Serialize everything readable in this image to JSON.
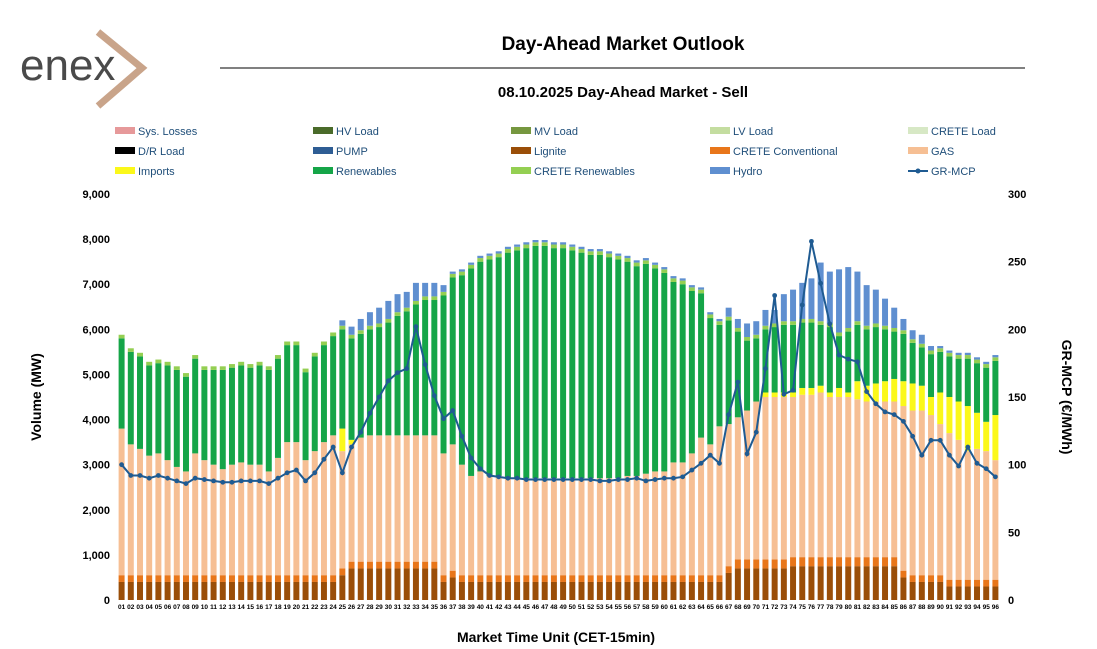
{
  "header": {
    "logo_text": "enex",
    "title": "Day-Ahead Market Outlook",
    "subtitle": "08.10.2025  Day-Ahead Market - Sell"
  },
  "chart_data": {
    "type": "bar",
    "stacked": true,
    "title": "Day-Ahead Market Outlook",
    "subtitle": "08.10.2025  Day-Ahead Market - Sell",
    "xlabel": "Market Time Unit (CET-15min)",
    "ylabel": "Volume (MW)",
    "y2label": "GR-MCP (€/MWh)",
    "ylim": [
      0,
      9000
    ],
    "y2lim": [
      0,
      300
    ],
    "yticks": [
      "0",
      "1,000",
      "2,000",
      "3,000",
      "4,000",
      "5,000",
      "6,000",
      "7,000",
      "8,000",
      "9,000"
    ],
    "y2ticks": [
      "0",
      "50",
      "100",
      "150",
      "200",
      "250",
      "300"
    ],
    "grid": false,
    "legend_position": "top",
    "categories": [
      "01",
      "02",
      "03",
      "04",
      "05",
      "06",
      "07",
      "08",
      "09",
      "10",
      "11",
      "12",
      "13",
      "14",
      "15",
      "16",
      "17",
      "18",
      "19",
      "20",
      "21",
      "22",
      "23",
      "24",
      "25",
      "26",
      "27",
      "28",
      "29",
      "30",
      "31",
      "32",
      "33",
      "34",
      "35",
      "36",
      "37",
      "38",
      "39",
      "40",
      "41",
      "42",
      "43",
      "44",
      "45",
      "46",
      "47",
      "48",
      "49",
      "50",
      "51",
      "52",
      "53",
      "54",
      "55",
      "56",
      "57",
      "58",
      "59",
      "60",
      "61",
      "62",
      "63",
      "64",
      "65",
      "66",
      "67",
      "68",
      "69",
      "70",
      "71",
      "72",
      "73",
      "74",
      "75",
      "76",
      "77",
      "78",
      "79",
      "80",
      "81",
      "82",
      "83",
      "84",
      "85",
      "86",
      "87",
      "88",
      "89",
      "90",
      "91",
      "92",
      "93",
      "94",
      "95",
      "96"
    ],
    "legend": [
      {
        "name": "Sys. Losses",
        "color": "#e6999a",
        "kind": "bar"
      },
      {
        "name": "HV Load",
        "color": "#4a6b2a",
        "kind": "bar"
      },
      {
        "name": "MV Load",
        "color": "#76973f",
        "kind": "bar"
      },
      {
        "name": "LV Load",
        "color": "#c4dda0",
        "kind": "bar"
      },
      {
        "name": "CRETE Load",
        "color": "#d7e8c5",
        "kind": "bar"
      },
      {
        "name": "D/R Load",
        "color": "#000000",
        "kind": "bar"
      },
      {
        "name": "PUMP",
        "color": "#2e5d94",
        "kind": "bar"
      },
      {
        "name": "Lignite",
        "color": "#9a4e08",
        "kind": "bar"
      },
      {
        "name": "CRETE Conventional",
        "color": "#e8761a",
        "kind": "bar"
      },
      {
        "name": "GAS",
        "color": "#f6bf94",
        "kind": "bar"
      },
      {
        "name": "Imports",
        "color": "#fbf81a",
        "kind": "bar"
      },
      {
        "name": "Renewables",
        "color": "#15a548",
        "kind": "bar"
      },
      {
        "name": "CRETE Renewables",
        "color": "#94cf52",
        "kind": "bar"
      },
      {
        "name": "Hydro",
        "color": "#5f8fd0",
        "kind": "bar"
      },
      {
        "name": "GR-MCP",
        "color": "#1f5b92",
        "kind": "line"
      }
    ],
    "series": [
      {
        "name": "Lignite",
        "color": "#9a4e08",
        "values": [
          400,
          400,
          400,
          400,
          400,
          400,
          400,
          400,
          400,
          400,
          400,
          400,
          400,
          400,
          400,
          400,
          400,
          400,
          400,
          400,
          400,
          400,
          400,
          400,
          550,
          700,
          700,
          700,
          700,
          700,
          700,
          700,
          700,
          700,
          700,
          400,
          500,
          400,
          400,
          400,
          400,
          400,
          400,
          400,
          400,
          400,
          400,
          400,
          400,
          400,
          400,
          400,
          400,
          400,
          400,
          400,
          400,
          400,
          400,
          400,
          400,
          400,
          400,
          400,
          400,
          400,
          600,
          700,
          700,
          700,
          700,
          700,
          700,
          750,
          750,
          750,
          750,
          750,
          750,
          750,
          750,
          750,
          750,
          750,
          750,
          500,
          400,
          400,
          400,
          400,
          300,
          300,
          300,
          300,
          300,
          300
        ]
      },
      {
        "name": "CRETE Conventional",
        "color": "#e8761a",
        "values": [
          150,
          150,
          150,
          150,
          150,
          150,
          150,
          150,
          150,
          150,
          150,
          150,
          150,
          150,
          150,
          150,
          150,
          150,
          150,
          150,
          150,
          150,
          150,
          150,
          150,
          150,
          150,
          150,
          150,
          150,
          150,
          150,
          150,
          150,
          150,
          150,
          150,
          150,
          150,
          150,
          150,
          150,
          150,
          150,
          150,
          150,
          150,
          150,
          150,
          150,
          150,
          150,
          150,
          150,
          150,
          150,
          150,
          150,
          150,
          150,
          150,
          150,
          150,
          150,
          150,
          150,
          150,
          200,
          200,
          200,
          200,
          200,
          200,
          200,
          200,
          200,
          200,
          200,
          200,
          200,
          200,
          200,
          200,
          200,
          200,
          150,
          150,
          150,
          150,
          150,
          150,
          150,
          150,
          150,
          150,
          150
        ]
      },
      {
        "name": "GAS",
        "color": "#f6bf94",
        "values": [
          3250,
          2900,
          2800,
          2650,
          2700,
          2550,
          2400,
          2300,
          2700,
          2550,
          2450,
          2350,
          2450,
          2500,
          2450,
          2450,
          2300,
          2600,
          2950,
          2950,
          2550,
          2750,
          2950,
          3100,
          2600,
          2600,
          2750,
          2800,
          2800,
          2800,
          2800,
          2800,
          2800,
          2800,
          2800,
          2700,
          2800,
          2450,
          2200,
          2300,
          2200,
          2200,
          2150,
          2150,
          2150,
          2150,
          2150,
          2150,
          2150,
          2150,
          2150,
          2150,
          2150,
          2150,
          2150,
          2200,
          2200,
          2250,
          2300,
          2300,
          2500,
          2500,
          2700,
          3050,
          2900,
          3300,
          3150,
          3150,
          3300,
          3500,
          3600,
          3600,
          3600,
          3550,
          3600,
          3600,
          3650,
          3550,
          3550,
          3550,
          3500,
          3450,
          3450,
          3450,
          3450,
          3650,
          3650,
          3650,
          3550,
          3350,
          3250,
          3100,
          2850,
          2900,
          2850,
          2650
        ]
      },
      {
        "name": "Imports",
        "color": "#fbf81a",
        "values": [
          0,
          0,
          0,
          0,
          0,
          0,
          0,
          0,
          0,
          0,
          0,
          0,
          0,
          0,
          0,
          0,
          0,
          0,
          0,
          0,
          0,
          0,
          0,
          0,
          500,
          100,
          0,
          0,
          0,
          0,
          0,
          0,
          0,
          0,
          0,
          0,
          0,
          0,
          0,
          0,
          0,
          0,
          0,
          0,
          0,
          0,
          0,
          0,
          0,
          0,
          0,
          0,
          0,
          0,
          0,
          0,
          0,
          0,
          0,
          0,
          0,
          0,
          0,
          0,
          0,
          0,
          0,
          0,
          0,
          0,
          100,
          100,
          100,
          100,
          150,
          150,
          150,
          100,
          200,
          100,
          400,
          350,
          400,
          450,
          500,
          550,
          600,
          550,
          400,
          700,
          800,
          850,
          1000,
          800,
          650,
          1000
        ]
      },
      {
        "name": "Renewables",
        "color": "#15a548",
        "values": [
          2000,
          2050,
          2050,
          2000,
          2000,
          2100,
          2150,
          2100,
          2100,
          2000,
          2100,
          2200,
          2150,
          2150,
          2150,
          2200,
          2250,
          2200,
          2150,
          2150,
          1950,
          2100,
          2150,
          2200,
          2200,
          2250,
          2300,
          2350,
          2400,
          2500,
          2650,
          2750,
          2900,
          3000,
          3000,
          3500,
          3700,
          4200,
          4600,
          4650,
          4800,
          4850,
          5000,
          5050,
          5100,
          5150,
          5150,
          5100,
          5100,
          5050,
          5000,
          4950,
          4950,
          4900,
          4850,
          4750,
          4650,
          4650,
          4500,
          4400,
          4000,
          3950,
          3600,
          3200,
          2800,
          2250,
          2300,
          1900,
          1550,
          1400,
          1400,
          1450,
          1500,
          1500,
          1450,
          1450,
          1350,
          1450,
          1150,
          1350,
          1250,
          1250,
          1250,
          1150,
          1050,
          1050,
          900,
          850,
          950,
          900,
          900,
          950,
          1050,
          1100,
          1200,
          1200
        ]
      },
      {
        "name": "CRETE Renewables",
        "color": "#94cf52",
        "values": [
          80,
          80,
          80,
          80,
          80,
          80,
          80,
          80,
          80,
          80,
          80,
          80,
          80,
          80,
          80,
          80,
          80,
          80,
          80,
          80,
          80,
          80,
          80,
          80,
          80,
          80,
          80,
          80,
          80,
          80,
          80,
          80,
          80,
          80,
          80,
          80,
          80,
          80,
          80,
          80,
          80,
          80,
          80,
          80,
          80,
          80,
          80,
          80,
          80,
          80,
          80,
          80,
          80,
          80,
          80,
          80,
          80,
          80,
          80,
          80,
          80,
          80,
          80,
          80,
          80,
          80,
          80,
          80,
          80,
          80,
          80,
          80,
          80,
          80,
          80,
          80,
          80,
          80,
          80,
          80,
          80,
          80,
          80,
          80,
          80,
          80,
          80,
          80,
          80,
          80,
          80,
          80,
          80,
          80,
          80,
          80
        ]
      },
      {
        "name": "Hydro",
        "color": "#5f8fd0",
        "values": [
          0,
          0,
          0,
          0,
          0,
          0,
          0,
          0,
          0,
          0,
          0,
          0,
          0,
          0,
          0,
          0,
          0,
          0,
          0,
          0,
          0,
          0,
          0,
          0,
          120,
          180,
          250,
          300,
          350,
          400,
          400,
          350,
          400,
          300,
          300,
          150,
          50,
          50,
          50,
          50,
          50,
          50,
          50,
          50,
          50,
          50,
          50,
          50,
          50,
          50,
          50,
          50,
          50,
          50,
          50,
          50,
          50,
          50,
          50,
          50,
          50,
          50,
          50,
          50,
          50,
          50,
          200,
          200,
          300,
          300,
          350,
          300,
          600,
          700,
          800,
          900,
          1300,
          1150,
          1400,
          1350,
          1100,
          900,
          750,
          600,
          450,
          250,
          200,
          200,
          100,
          50,
          50,
          50,
          50,
          50,
          50,
          50
        ]
      }
    ],
    "line": {
      "name": "GR-MCP",
      "color": "#1f5b92",
      "axis": "right",
      "values": [
        100,
        92,
        92,
        90,
        92,
        90,
        88,
        86,
        90,
        89,
        88,
        87,
        87,
        88,
        88,
        88,
        86,
        90,
        94,
        96,
        88,
        94,
        104,
        113,
        94,
        113,
        124,
        138,
        150,
        162,
        168,
        171,
        202,
        174,
        151,
        134,
        140,
        121,
        105,
        97,
        92,
        91,
        90,
        90,
        89,
        89,
        89,
        89,
        89,
        89,
        89,
        89,
        88,
        88,
        89,
        89,
        90,
        88,
        89,
        90,
        90,
        91,
        96,
        101,
        107,
        101,
        137,
        161,
        108,
        124,
        171,
        225,
        152,
        155,
        218,
        265,
        234,
        204,
        181,
        178,
        176,
        154,
        145,
        139,
        137,
        132,
        121,
        107,
        118,
        118,
        107,
        99,
        113,
        101,
        97,
        91
      ]
    }
  }
}
